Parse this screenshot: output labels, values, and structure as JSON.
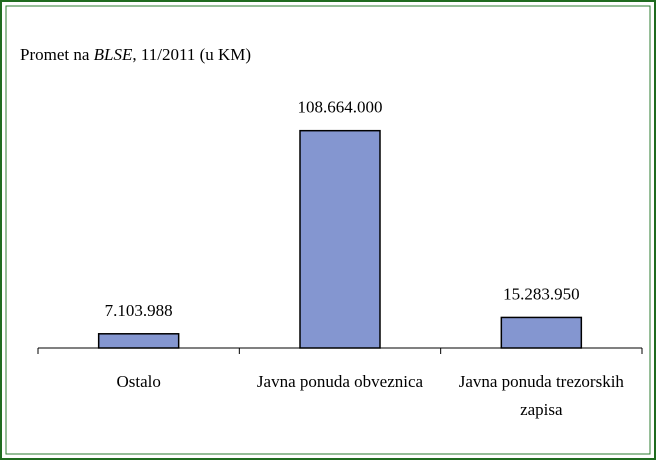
{
  "chart_data": {
    "type": "bar",
    "title": [
      "Promet na ",
      "BLSE",
      ", 11/2011 (u KM)"
    ],
    "categories": [
      "Ostalo",
      "Javna ponuda obveznica",
      "Javna ponuda trezorskih zapisa"
    ],
    "values": [
      7103988,
      108664000,
      15283950
    ],
    "value_labels": [
      "7.103.988",
      "108.664.000",
      "15.283.950"
    ],
    "color": "#8496d0",
    "ylim": [
      0,
      120000000
    ]
  }
}
